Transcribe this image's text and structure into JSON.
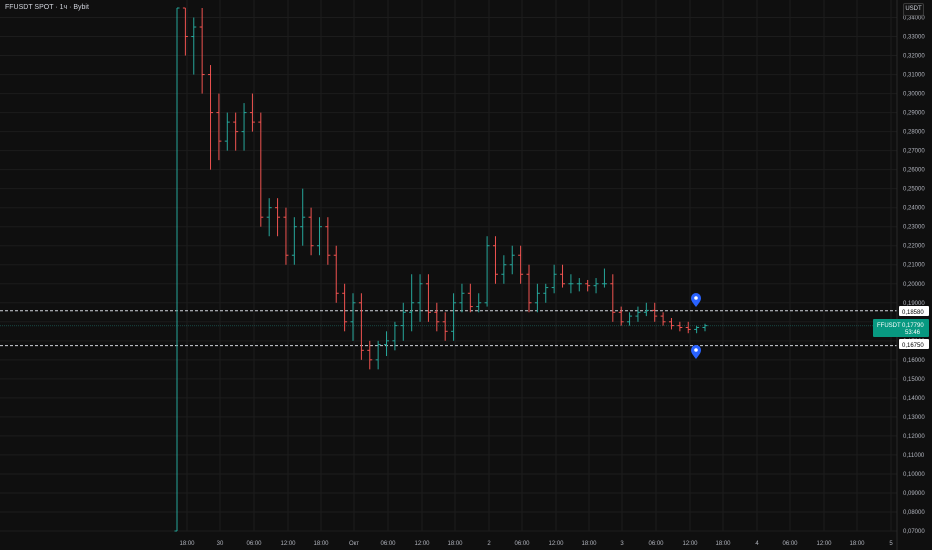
{
  "header": {
    "title": "FFUSDT SPOT · 1ч · Bybit",
    "currency": "USDT"
  },
  "colors": {
    "up": "#26a69a",
    "down": "#ef5350",
    "marker": "#2962ff",
    "grid": "#1c1c1c",
    "last_price_bg": "#089981"
  },
  "price_labels": {
    "last_symbol": "FFUSDT",
    "last_price": "0,17790",
    "countdown": "53:46",
    "upper_line": "0,18580",
    "lower_line": "0,16750"
  },
  "chart_data": {
    "type": "ohlc",
    "title": "FFUSDT SPOT · 1ч · Bybit",
    "y_axis": {
      "min": 0.07,
      "max": 0.345,
      "side": "right",
      "ticks": [
        "0,34000",
        "0,33000",
        "0,32000",
        "0,31000",
        "0,30000",
        "0,29000",
        "0,28000",
        "0,27000",
        "0,26000",
        "0,25000",
        "0,24000",
        "0,23000",
        "0,22000",
        "0,21000",
        "0,20000",
        "0,19000",
        "0,18000",
        "0,17000",
        "0,16000",
        "0,15000",
        "0,14000",
        "0,13000",
        "0,12000",
        "0,11000",
        "0,10000",
        "0,09000",
        "0,08000",
        "0,07000"
      ]
    },
    "x_axis": {
      "ticks": [
        "18:00",
        "30",
        "06:00",
        "12:00",
        "18:00",
        "Окт",
        "06:00",
        "12:00",
        "18:00",
        "2",
        "06:00",
        "12:00",
        "18:00",
        "3",
        "06:00",
        "12:00",
        "18:00",
        "4",
        "06:00",
        "12:00",
        "18:00",
        "5"
      ]
    },
    "hlines": [
      0.1858,
      0.1675
    ],
    "last_price": 0.1779,
    "candles": [
      [
        0.07,
        0.345,
        0.07,
        0.345
      ],
      [
        0.345,
        0.345,
        0.32,
        0.33
      ],
      [
        0.33,
        0.34,
        0.31,
        0.335
      ],
      [
        0.335,
        0.345,
        0.3,
        0.31
      ],
      [
        0.31,
        0.315,
        0.26,
        0.29
      ],
      [
        0.29,
        0.3,
        0.265,
        0.275
      ],
      [
        0.275,
        0.29,
        0.27,
        0.285
      ],
      [
        0.285,
        0.29,
        0.27,
        0.28
      ],
      [
        0.28,
        0.295,
        0.27,
        0.29
      ],
      [
        0.29,
        0.3,
        0.28,
        0.285
      ],
      [
        0.285,
        0.29,
        0.23,
        0.235
      ],
      [
        0.235,
        0.245,
        0.225,
        0.24
      ],
      [
        0.24,
        0.245,
        0.225,
        0.235
      ],
      [
        0.235,
        0.24,
        0.21,
        0.215
      ],
      [
        0.215,
        0.235,
        0.21,
        0.23
      ],
      [
        0.23,
        0.25,
        0.22,
        0.235
      ],
      [
        0.235,
        0.24,
        0.215,
        0.22
      ],
      [
        0.22,
        0.235,
        0.215,
        0.23
      ],
      [
        0.23,
        0.235,
        0.21,
        0.215
      ],
      [
        0.215,
        0.22,
        0.19,
        0.195
      ],
      [
        0.195,
        0.2,
        0.175,
        0.18
      ],
      [
        0.18,
        0.195,
        0.17,
        0.19
      ],
      [
        0.19,
        0.195,
        0.16,
        0.165
      ],
      [
        0.165,
        0.17,
        0.155,
        0.16
      ],
      [
        0.16,
        0.17,
        0.155,
        0.168
      ],
      [
        0.168,
        0.175,
        0.162,
        0.17
      ],
      [
        0.17,
        0.18,
        0.165,
        0.178
      ],
      [
        0.178,
        0.19,
        0.17,
        0.185
      ],
      [
        0.185,
        0.205,
        0.175,
        0.19
      ],
      [
        0.19,
        0.205,
        0.18,
        0.2
      ],
      [
        0.2,
        0.205,
        0.18,
        0.185
      ],
      [
        0.185,
        0.19,
        0.175,
        0.18
      ],
      [
        0.18,
        0.185,
        0.17,
        0.175
      ],
      [
        0.175,
        0.195,
        0.17,
        0.19
      ],
      [
        0.19,
        0.2,
        0.185,
        0.195
      ],
      [
        0.195,
        0.2,
        0.185,
        0.188
      ],
      [
        0.188,
        0.195,
        0.185,
        0.19
      ],
      [
        0.19,
        0.225,
        0.188,
        0.22
      ],
      [
        0.22,
        0.225,
        0.2,
        0.205
      ],
      [
        0.205,
        0.215,
        0.2,
        0.21
      ],
      [
        0.21,
        0.22,
        0.205,
        0.215
      ],
      [
        0.215,
        0.22,
        0.2,
        0.205
      ],
      [
        0.205,
        0.21,
        0.185,
        0.19
      ],
      [
        0.19,
        0.2,
        0.185,
        0.195
      ],
      [
        0.195,
        0.2,
        0.19,
        0.198
      ],
      [
        0.198,
        0.21,
        0.195,
        0.205
      ],
      [
        0.205,
        0.21,
        0.198,
        0.2
      ],
      [
        0.2,
        0.205,
        0.195,
        0.2
      ],
      [
        0.2,
        0.203,
        0.196,
        0.2
      ],
      [
        0.2,
        0.202,
        0.196,
        0.199
      ],
      [
        0.199,
        0.203,
        0.195,
        0.2
      ],
      [
        0.2,
        0.208,
        0.198,
        0.2
      ],
      [
        0.2,
        0.205,
        0.18,
        0.185
      ],
      [
        0.185,
        0.188,
        0.178,
        0.18
      ],
      [
        0.18,
        0.185,
        0.178,
        0.183
      ],
      [
        0.183,
        0.188,
        0.18,
        0.185
      ],
      [
        0.185,
        0.19,
        0.183,
        0.186
      ],
      [
        0.186,
        0.19,
        0.18,
        0.183
      ],
      [
        0.183,
        0.185,
        0.178,
        0.18
      ],
      [
        0.18,
        0.182,
        0.176,
        0.178
      ],
      [
        0.178,
        0.18,
        0.175,
        0.177
      ],
      [
        0.177,
        0.18,
        0.174,
        0.176
      ],
      [
        0.176,
        0.178,
        0.174,
        0.177
      ],
      [
        0.177,
        0.179,
        0.175,
        0.178
      ]
    ]
  }
}
